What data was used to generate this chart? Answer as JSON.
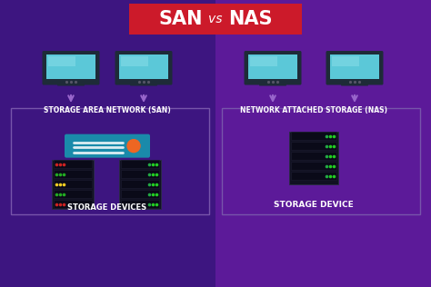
{
  "bg_left_color": "#3d1580",
  "bg_right_color": "#5c1a99",
  "title_bg_color": "#cc1a2a",
  "title_text_color": "#ffffff",
  "divider_color": "#6a3aaa",
  "box_edge_color": "#7755aa",
  "monitor_screen_color": "#5bc8d8",
  "monitor_screen_highlight": "#88dde8",
  "monitor_body_color": "#1e2b38",
  "arrow_color": "#9966cc",
  "label_san": "STORAGE AREA NETWORK (SAN)",
  "label_nas": "NETWORK ATTACHED STORAGE (NAS)",
  "label_devices": "STORAGE DEVICES",
  "label_device": "STORAGE DEVICE",
  "label_color": "#ffffff",
  "switch_body_color": "#1a8aaa",
  "switch_stripe_color": "#ffffff",
  "switch_dot_color": "#ee6622",
  "server_body_color": "#111122",
  "server_unit_color": "#0a0a18",
  "server_edge_color": "#2a2a44"
}
